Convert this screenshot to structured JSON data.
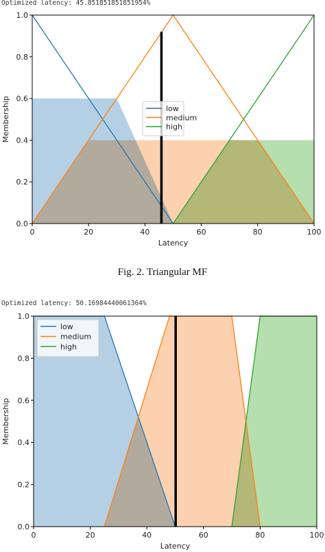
{
  "figure1": {
    "top_text": "Optimized latency: 45.851851851851954%",
    "caption": "Fig. 2.   Triangular MF"
  },
  "figure2": {
    "top_text": "Optimized latency: 50.16984440061364%"
  },
  "colors": {
    "low": "#1f77b4",
    "medium": "#ff7f0e",
    "high": "#2ca02c",
    "low_fill": "#a8c8e0",
    "medium_fill": "#fcc9a2",
    "high_fill": "#a8d9a0",
    "overlap_fill": "#c4ab92"
  },
  "chart_data": [
    {
      "type": "area",
      "xlabel": "Latency",
      "ylabel": "Membership",
      "xlim": [
        0,
        100
      ],
      "ylim": [
        0,
        1.0
      ],
      "xticks": [
        0,
        20,
        40,
        60,
        80,
        100
      ],
      "yticks": [
        0.0,
        0.2,
        0.4,
        0.6,
        0.8,
        1.0
      ],
      "legend": "center",
      "series": [
        {
          "name": "low",
          "x": [
            0,
            50
          ],
          "y": [
            1,
            0
          ]
        },
        {
          "name": "medium",
          "x": [
            0,
            50,
            100
          ],
          "y": [
            0,
            1,
            0
          ]
        },
        {
          "name": "high",
          "x": [
            50,
            100
          ],
          "y": [
            0,
            1
          ]
        }
      ],
      "fills": [
        {
          "series": "low",
          "x": [
            0,
            30,
            50
          ],
          "y": [
            0.6,
            0.6,
            0
          ]
        },
        {
          "series": "medium",
          "x": [
            0,
            20,
            80,
            100
          ],
          "y": [
            0,
            0.4,
            0.4,
            0
          ]
        },
        {
          "series": "high",
          "x": [
            50,
            70,
            100,
            100
          ],
          "y": [
            0,
            0.4,
            0.4,
            0
          ]
        }
      ],
      "marker_x": 45.85
    },
    {
      "type": "area",
      "xlabel": "Latency",
      "ylabel": "Membership",
      "xlim": [
        0,
        100
      ],
      "ylim": [
        0,
        1.0
      ],
      "xticks": [
        0,
        20,
        40,
        60,
        80,
        100
      ],
      "yticks": [
        0.0,
        0.2,
        0.4,
        0.6,
        0.8,
        1.0
      ],
      "legend": "top-left",
      "series": [
        {
          "name": "low",
          "x": [
            0,
            25,
            50
          ],
          "y": [
            1,
            1,
            0
          ]
        },
        {
          "name": "medium",
          "x": [
            25,
            48,
            70,
            80
          ],
          "y": [
            0,
            1,
            1,
            0
          ]
        },
        {
          "name": "high",
          "x": [
            70,
            80,
            100
          ],
          "y": [
            0,
            1,
            1
          ]
        }
      ],
      "fills": [
        {
          "series": "low",
          "x": [
            0,
            25,
            50
          ],
          "y": [
            1,
            1,
            0
          ]
        },
        {
          "series": "medium",
          "x": [
            25,
            48,
            70,
            80
          ],
          "y": [
            0,
            1,
            1,
            0
          ]
        },
        {
          "series": "high",
          "x": [
            70,
            80,
            100
          ],
          "y": [
            0,
            1,
            1
          ]
        }
      ],
      "marker_x": 50.17
    }
  ]
}
